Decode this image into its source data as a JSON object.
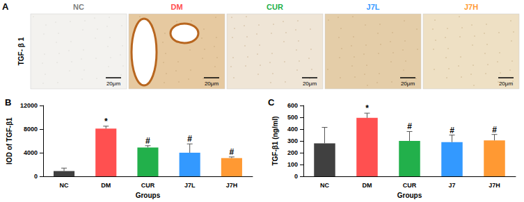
{
  "images": {
    "panel": "A",
    "row_label": "TGF- β 1",
    "columns": [
      {
        "title": "NC",
        "color": "#808080",
        "scale_bar": "20μm"
      },
      {
        "title": "DM",
        "color": "#ff5050",
        "scale_bar": "20μm"
      },
      {
        "title": "CUR",
        "color": "#22b04b",
        "scale_bar": "20μm"
      },
      {
        "title": "J7L",
        "color": "#3399ff",
        "scale_bar": "20μm"
      },
      {
        "title": "J7H",
        "color": "#ff9933",
        "scale_bar": "20μm"
      }
    ]
  },
  "chart_data": [
    {
      "type": "bar",
      "panel": "B",
      "x_label": "Groups",
      "y_label": "IOD of TGF-β1",
      "categories": [
        "NC",
        "DM",
        "CUR",
        "J7L",
        "J7H"
      ],
      "values": [
        900,
        8100,
        4900,
        4000,
        3100
      ],
      "errors": [
        500,
        400,
        300,
        1500,
        200
      ],
      "significance": [
        null,
        "*",
        "#",
        "#",
        "#"
      ],
      "colors": [
        "#404040",
        "#ff5050",
        "#22b04b",
        "#3399ff",
        "#ff9933"
      ],
      "ylim": [
        0,
        12000
      ],
      "yticks": [
        0,
        4000,
        8000,
        12000
      ],
      "grid": false
    },
    {
      "type": "bar",
      "panel": "C",
      "x_label": "Groups",
      "y_label": "TGF-β1 (ng/ml)",
      "categories": [
        "NC",
        "DM",
        "CUR",
        "J7",
        "J7H"
      ],
      "values": [
        280,
        495,
        300,
        290,
        305
      ],
      "errors": [
        135,
        40,
        80,
        60,
        50
      ],
      "significance": [
        null,
        "*",
        "#",
        "#",
        "#"
      ],
      "colors": [
        "#404040",
        "#ff5050",
        "#22b04b",
        "#3399ff",
        "#ff9933"
      ],
      "ylim": [
        0,
        600
      ],
      "yticks": [
        0,
        100,
        200,
        300,
        400,
        500,
        600
      ],
      "grid": false
    }
  ]
}
